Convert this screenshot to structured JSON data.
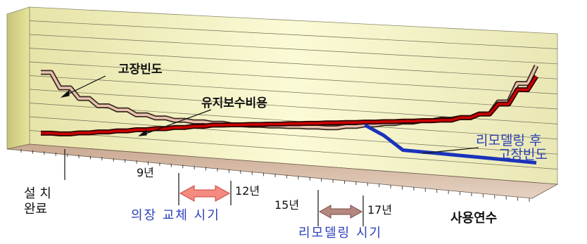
{
  "chart_data": {
    "type": "line",
    "x_axis_label": "사용연수",
    "series": [
      {
        "name": "고장빈도",
        "color": "#e8c2ae",
        "edge": "#3a2a22",
        "points": [
          [
            0,
            85
          ],
          [
            1,
            67
          ],
          [
            2,
            55
          ],
          [
            3,
            47
          ],
          [
            4,
            43
          ],
          [
            5,
            38
          ],
          [
            6,
            35
          ],
          [
            7,
            33
          ],
          [
            8,
            32
          ],
          [
            9,
            31
          ],
          [
            10,
            30
          ],
          [
            11,
            30
          ],
          [
            12,
            30
          ],
          [
            13,
            30
          ],
          [
            14,
            30
          ],
          [
            15,
            30
          ],
          [
            16,
            32
          ],
          [
            17,
            34
          ],
          [
            18,
            36
          ],
          [
            19,
            38
          ],
          [
            20,
            40
          ],
          [
            21,
            42
          ],
          [
            22,
            44
          ],
          [
            23,
            48
          ],
          [
            24,
            60
          ],
          [
            25,
            78
          ],
          [
            26,
            95
          ]
        ]
      },
      {
        "name": "유지보수비용",
        "color": "#cc0000",
        "edge": "#2a0000",
        "points": [
          [
            0,
            13
          ],
          [
            1,
            13
          ],
          [
            2,
            15
          ],
          [
            3,
            17
          ],
          [
            4,
            19
          ],
          [
            5,
            21
          ],
          [
            6,
            23
          ],
          [
            7,
            25
          ],
          [
            8,
            27
          ],
          [
            9,
            29
          ],
          [
            10,
            30
          ],
          [
            11,
            31
          ],
          [
            12,
            32
          ],
          [
            13,
            33
          ],
          [
            14,
            34
          ],
          [
            15,
            35
          ],
          [
            16,
            36
          ],
          [
            17,
            37
          ],
          [
            18,
            38
          ],
          [
            19,
            39
          ],
          [
            20,
            40
          ],
          [
            21,
            41
          ],
          [
            22,
            44
          ],
          [
            23,
            48
          ],
          [
            24,
            58
          ],
          [
            25,
            72
          ],
          [
            26,
            85
          ]
        ]
      },
      {
        "name": "리모델링 후 고장빈도",
        "color": "#1a33bb",
        "points": [
          [
            17,
            34
          ],
          [
            18,
            24
          ],
          [
            19,
            10
          ],
          [
            20,
            9
          ],
          [
            21,
            8
          ],
          [
            22,
            7
          ],
          [
            23,
            6
          ],
          [
            24,
            5
          ],
          [
            25,
            4
          ],
          [
            26,
            3
          ]
        ]
      }
    ],
    "annotations": {
      "failure_label": "고장빈도",
      "maintenance_label": "유지보수비용",
      "remodel_label_line1": "리모델링 후",
      "remodel_label_line2": "고장빈도",
      "install_line1": "설 치",
      "install_line2": "완료",
      "year9": "9년",
      "year12": "12년",
      "year15": "15년",
      "year17": "17년",
      "furniture_period": "의장 교체 시기",
      "remodel_period": "리모델링 시기"
    },
    "colors": {
      "wall": "#fafad2",
      "floor": "#d6b8a0",
      "furniture_arrow": "#f48a80",
      "remodel_arrow": "#b48880",
      "blue_text": "#2a3fb8"
    },
    "grid": true
  }
}
